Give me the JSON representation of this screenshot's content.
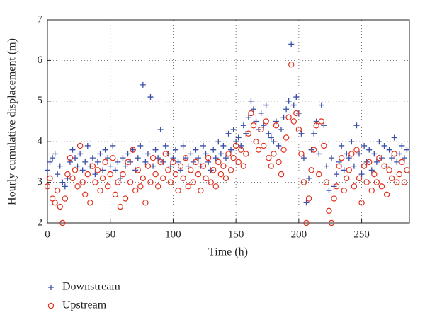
{
  "chart_data": {
    "type": "scatter",
    "xlabel": "Time (h)",
    "ylabel": "Hourly cumulative displacement (m)",
    "x": [
      0,
      2,
      4,
      6,
      8,
      10,
      12,
      14,
      16,
      18,
      20,
      22,
      24,
      26,
      28,
      30,
      32,
      34,
      36,
      38,
      40,
      42,
      44,
      46,
      48,
      50,
      52,
      54,
      56,
      58,
      60,
      62,
      64,
      66,
      68,
      70,
      72,
      74,
      76,
      78,
      80,
      82,
      84,
      86,
      88,
      90,
      92,
      94,
      96,
      98,
      100,
      102,
      104,
      106,
      108,
      110,
      112,
      114,
      116,
      118,
      120,
      122,
      124,
      126,
      128,
      130,
      132,
      134,
      136,
      138,
      140,
      142,
      144,
      146,
      148,
      150,
      152,
      154,
      156,
      158,
      160,
      162,
      164,
      166,
      168,
      170,
      172,
      174,
      176,
      178,
      180,
      182,
      184,
      186,
      188,
      190,
      192,
      194,
      196,
      198,
      200,
      202,
      204,
      206,
      208,
      210,
      212,
      214,
      216,
      218,
      220,
      222,
      224,
      226,
      228,
      230,
      232,
      234,
      236,
      238,
      240,
      242,
      244,
      246,
      248,
      250,
      252,
      254,
      256,
      258,
      260,
      262,
      264,
      266,
      268,
      270,
      272,
      274,
      276,
      278,
      280,
      282,
      284,
      286
    ],
    "series": [
      {
        "name": "Downstream",
        "color": "#3a4fa8",
        "marker": "plus",
        "values": [
          3.3,
          3.5,
          3.6,
          3.7,
          3.2,
          3.4,
          3.0,
          2.9,
          3.1,
          3.5,
          3.8,
          3.6,
          3.4,
          3.7,
          3.3,
          3.5,
          3.9,
          3.4,
          3.6,
          3.2,
          3.5,
          3.7,
          3.3,
          3.8,
          3.6,
          3.4,
          3.9,
          3.3,
          3.5,
          3.1,
          3.6,
          3.4,
          3.7,
          3.5,
          3.8,
          3.3,
          3.6,
          3.9,
          5.4,
          3.5,
          3.7,
          5.1,
          3.4,
          3.8,
          3.6,
          4.3,
          3.5,
          3.9,
          3.7,
          3.4,
          3.6,
          3.8,
          3.5,
          3.3,
          3.9,
          3.6,
          3.4,
          3.7,
          3.5,
          3.8,
          3.6,
          3.4,
          3.9,
          3.7,
          3.5,
          3.3,
          3.8,
          3.6,
          4.0,
          3.7,
          3.9,
          3.6,
          4.2,
          3.8,
          4.3,
          4.0,
          4.1,
          3.9,
          4.4,
          4.2,
          4.6,
          5.0,
          4.8,
          4.5,
          4.3,
          4.7,
          4.4,
          4.9,
          4.2,
          4.1,
          4.0,
          4.5,
          3.9,
          4.3,
          4.6,
          4.8,
          5.0,
          6.4,
          4.9,
          5.1,
          4.7,
          4.2,
          3.6,
          2.5,
          3.1,
          3.8,
          4.2,
          4.5,
          3.7,
          4.9,
          4.4,
          3.4,
          2.8,
          3.6,
          2.9,
          3.2,
          3.5,
          3.9,
          3.3,
          3.7,
          3.6,
          4.0,
          3.4,
          4.4,
          3.7,
          3.2,
          3.9,
          3.5,
          3.8,
          3.3,
          3.7,
          3.5,
          4.0,
          3.6,
          3.9,
          3.4,
          3.8,
          3.6,
          4.1,
          3.5,
          3.7,
          3.9,
          3.6,
          3.8
        ]
      },
      {
        "name": "Upstream",
        "color": "#e0301e",
        "marker": "circle",
        "values": [
          2.9,
          3.1,
          2.6,
          2.5,
          2.8,
          2.4,
          2.0,
          2.6,
          3.2,
          3.6,
          3.1,
          3.3,
          2.9,
          3.9,
          3.0,
          2.7,
          3.2,
          2.5,
          3.4,
          3.0,
          3.3,
          2.8,
          3.1,
          3.5,
          2.9,
          3.2,
          3.6,
          2.7,
          3.0,
          2.4,
          3.2,
          2.6,
          3.5,
          3.0,
          3.8,
          2.8,
          3.3,
          2.9,
          3.1,
          2.5,
          3.4,
          3.0,
          3.6,
          3.2,
          2.9,
          3.5,
          3.1,
          3.7,
          3.3,
          3.0,
          3.5,
          3.2,
          2.8,
          3.4,
          3.1,
          3.6,
          2.9,
          3.3,
          3.0,
          3.5,
          3.2,
          2.8,
          3.4,
          3.1,
          3.6,
          3.0,
          3.3,
          2.9,
          3.5,
          3.2,
          3.4,
          3.1,
          3.7,
          3.3,
          3.6,
          3.9,
          3.5,
          3.8,
          3.4,
          3.7,
          4.2,
          4.7,
          4.4,
          4.0,
          3.8,
          4.3,
          3.9,
          4.5,
          3.6,
          3.4,
          3.7,
          4.4,
          3.5,
          3.2,
          3.8,
          4.1,
          4.6,
          5.9,
          4.5,
          4.7,
          4.3,
          3.7,
          3.0,
          2.0,
          2.6,
          3.3,
          3.8,
          4.4,
          3.2,
          4.5,
          3.9,
          3.0,
          2.3,
          2.0,
          2.6,
          2.9,
          3.4,
          3.6,
          2.8,
          3.1,
          3.3,
          3.7,
          2.9,
          3.8,
          3.1,
          2.5,
          3.4,
          3.0,
          3.5,
          2.8,
          3.2,
          3.0,
          3.6,
          2.9,
          3.4,
          2.7,
          3.3,
          3.1,
          3.7,
          3.0,
          3.2,
          3.5,
          3.0,
          3.3
        ]
      }
    ],
    "xlim": [
      0,
      288
    ],
    "ylim": [
      2,
      7
    ],
    "xticks": [
      0,
      50,
      100,
      150,
      200,
      250
    ],
    "yticks": [
      2,
      3,
      4,
      5,
      6,
      7
    ],
    "grid": true,
    "legend": "bottom-left"
  }
}
